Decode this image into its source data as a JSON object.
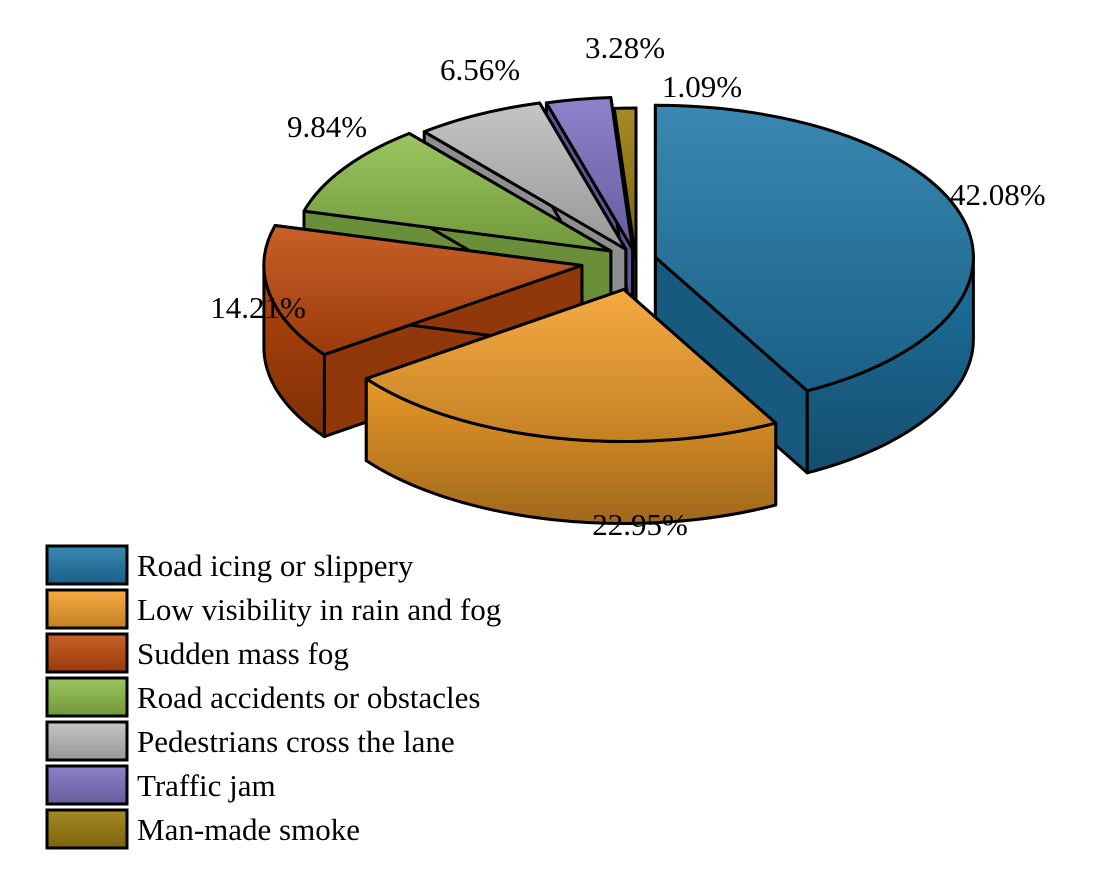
{
  "chart_data": {
    "type": "pie",
    "style": "3d-exploded",
    "categories": [
      "Road icing or slippery",
      "Low visibility in rain and fog",
      "Sudden mass fog",
      "Road accidents or obstacles",
      "Pedestrians cross the lane",
      "Traffic jam",
      "Man-made smoke"
    ],
    "values": [
      42.08,
      22.95,
      14.21,
      9.84,
      6.56,
      3.28,
      1.09
    ],
    "data_labels": [
      "42.08%",
      "22.95%",
      "14.21%",
      "9.84%",
      "6.56%",
      "3.28%",
      "1.09%"
    ],
    "colors": [
      "#1f78a8",
      "#f5a02a",
      "#c04a0c",
      "#8dbe4a",
      "#bdbdbd",
      "#7e72c4",
      "#9a7a0a"
    ],
    "legend_position": "bottom-left",
    "title": ""
  }
}
